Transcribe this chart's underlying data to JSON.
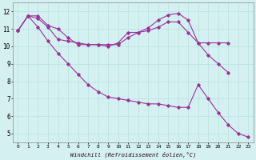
{
  "xlabel": "Windchill (Refroidissement éolien,°C)",
  "background_color": "#d4f0f0",
  "line_color": "#993399",
  "grid_color": "#b8e0e0",
  "xlim": [
    -0.5,
    23.5
  ],
  "ylim": [
    4.5,
    12.5
  ],
  "yticks": [
    5,
    6,
    7,
    8,
    9,
    10,
    11,
    12
  ],
  "xticks": [
    0,
    1,
    2,
    3,
    4,
    5,
    6,
    7,
    8,
    9,
    10,
    11,
    12,
    13,
    14,
    15,
    16,
    17,
    18,
    19,
    20,
    21,
    22,
    23
  ],
  "series": [
    [
      10.9,
      11.75,
      11.75,
      11.2,
      11.0,
      10.5,
      10.1,
      10.1,
      10.1,
      10.0,
      10.2,
      10.8,
      10.8,
      11.05,
      11.5,
      11.8,
      11.9,
      11.5,
      10.2,
      10.2,
      10.2,
      10.2,
      null,
      null
    ],
    [
      10.9,
      11.75,
      11.6,
      11.1,
      10.4,
      10.3,
      10.2,
      10.1,
      10.1,
      10.1,
      10.1,
      10.5,
      10.8,
      10.9,
      11.1,
      11.4,
      11.4,
      10.8,
      10.2,
      9.5,
      9.0,
      8.5,
      null,
      null
    ],
    [
      10.9,
      11.75,
      11.1,
      10.3,
      9.6,
      9.0,
      8.4,
      7.8,
      7.4,
      7.1,
      7.0,
      6.9,
      6.8,
      6.7,
      6.7,
      6.6,
      6.5,
      6.5,
      7.8,
      7.0,
      6.2,
      5.5,
      5.0,
      4.8
    ]
  ]
}
